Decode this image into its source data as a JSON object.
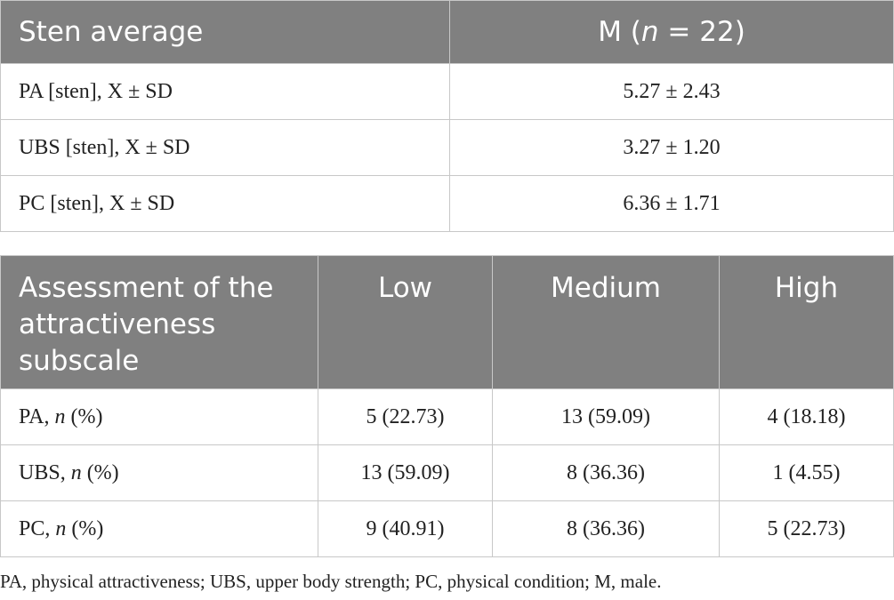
{
  "table1": {
    "header": [
      [
        {
          "text": "Sten average"
        }
      ],
      [
        {
          "text": "M ("
        },
        {
          "text": "n",
          "italic": true
        },
        {
          "text": " = 22)"
        }
      ]
    ],
    "rows": [
      [
        [
          {
            "text": "PA [sten], X ± SD"
          }
        ],
        [
          {
            "text": "5.27 ± 2.43"
          }
        ]
      ],
      [
        [
          {
            "text": "UBS [sten], X ± SD"
          }
        ],
        [
          {
            "text": "3.27 ± 1.20"
          }
        ]
      ],
      [
        [
          {
            "text": "PC [sten], X ± SD"
          }
        ],
        [
          {
            "text": "6.36 ± 1.71"
          }
        ]
      ]
    ]
  },
  "table2": {
    "header": [
      [
        {
          "text": "Assessment of the attractiveness subscale"
        }
      ],
      [
        {
          "text": "Low"
        }
      ],
      [
        {
          "text": "Medium"
        }
      ],
      [
        {
          "text": "High"
        }
      ]
    ],
    "rows": [
      [
        [
          {
            "text": "PA, "
          },
          {
            "text": "n",
            "italic": true
          },
          {
            "text": " (%)"
          }
        ],
        [
          {
            "text": "5 (22.73)"
          }
        ],
        [
          {
            "text": "13 (59.09)"
          }
        ],
        [
          {
            "text": "4 (18.18)"
          }
        ]
      ],
      [
        [
          {
            "text": "UBS, "
          },
          {
            "text": "n",
            "italic": true
          },
          {
            "text": " (%)"
          }
        ],
        [
          {
            "text": "13 (59.09)"
          }
        ],
        [
          {
            "text": "8 (36.36)"
          }
        ],
        [
          {
            "text": "1 (4.55)"
          }
        ]
      ],
      [
        [
          {
            "text": "PC, "
          },
          {
            "text": "n",
            "italic": true
          },
          {
            "text": " (%)"
          }
        ],
        [
          {
            "text": "9 (40.91)"
          }
        ],
        [
          {
            "text": "8 (36.36)"
          }
        ],
        [
          {
            "text": "5 (22.73)"
          }
        ]
      ]
    ]
  },
  "footnote": "PA, physical attractiveness; UBS, upper body strength; PC, physical condition; M, male."
}
